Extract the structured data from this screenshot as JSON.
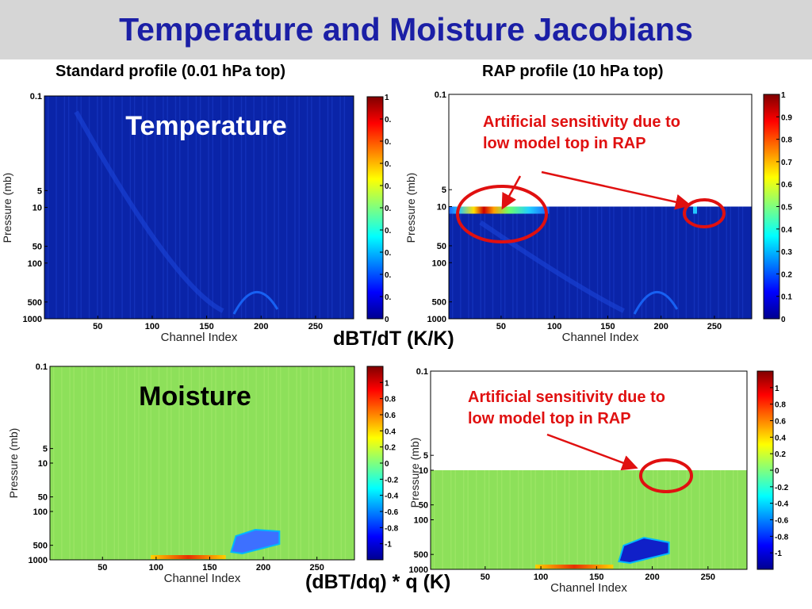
{
  "slide": {
    "title": "Temperature and Moisture Jacobians",
    "col_left": "Standard profile (0.01 hPa top)",
    "col_right": "RAP profile (10 hPa top)",
    "unit_temperature": "dBT/dT (K/K)",
    "unit_moisture": "(dBT/dq) * q (K)"
  },
  "colors": {
    "title": "#1b1fa6",
    "banner": "#d6d6d6",
    "annotation": "#e01010",
    "temp_bg": "#0a24a8",
    "moist_bg": "#8de05a"
  },
  "chart_data": [
    {
      "type": "heatmap",
      "name": "temp-standard",
      "label": "Temperature",
      "xlabel": "Channel Index",
      "ylabel": "Pressure (mb)",
      "xticks": [
        "50",
        "100",
        "150",
        "200",
        "250"
      ],
      "xlim": [
        1,
        285
      ],
      "yticks": [
        "0.1",
        "5",
        "10",
        "50",
        "100",
        "500",
        "1000"
      ],
      "yscale": "log",
      "ylim": [
        0.1,
        1000
      ],
      "colorbar_ticks": [
        "1",
        "0.",
        "0.",
        "0.",
        "0.",
        "0.",
        "0.",
        "0.",
        "0.",
        "0.",
        "0"
      ],
      "colorbar_range": [
        0,
        1
      ],
      "model_top_hpa": 0.01
    },
    {
      "type": "heatmap",
      "name": "temp-rap",
      "xlabel": "Channel Index",
      "ylabel": "Pressure (mb)",
      "xticks": [
        "50",
        "100",
        "150",
        "200",
        "250"
      ],
      "xlim": [
        1,
        285
      ],
      "yticks": [
        "0.1",
        "5",
        "10",
        "50",
        "100",
        "500",
        "1000"
      ],
      "yscale": "log",
      "ylim": [
        0.1,
        1000
      ],
      "colorbar_ticks": [
        "1",
        "0.9",
        "0.8",
        "0.7",
        "0.6",
        "0.5",
        "0.4",
        "0.3",
        "0.2",
        "0.1",
        "0"
      ],
      "colorbar_range": [
        0,
        1
      ],
      "model_top_hpa": 10,
      "annotation": "Artificial sensitivity due to\nlow model top in RAP"
    },
    {
      "type": "heatmap",
      "name": "moist-standard",
      "label": "Moisture",
      "xlabel": "Channel Index",
      "ylabel": "Pressure (mb)",
      "xticks": [
        "50",
        "100",
        "150",
        "200",
        "250"
      ],
      "xlim": [
        1,
        285
      ],
      "yticks": [
        "0.1",
        "5",
        "10",
        "50",
        "100",
        "500",
        "1000"
      ],
      "yscale": "log",
      "ylim": [
        0.1,
        1000
      ],
      "colorbar_ticks": [
        "1",
        "0.8",
        "0.6",
        "0.4",
        "0.2",
        "0",
        "-0.2",
        "-0.4",
        "-0.6",
        "-0.8",
        "-1"
      ],
      "colorbar_range": [
        -1.2,
        1.2
      ],
      "model_top_hpa": 0.01
    },
    {
      "type": "heatmap",
      "name": "moist-rap",
      "xlabel": "Channel Index",
      "ylabel": "Pressure (mb)",
      "xticks": [
        "50",
        "100",
        "150",
        "200",
        "250"
      ],
      "xlim": [
        1,
        285
      ],
      "yticks": [
        "0.1",
        "5",
        "10",
        "50",
        "100",
        "500",
        "1000"
      ],
      "yscale": "log",
      "ylim": [
        0.1,
        1000
      ],
      "colorbar_ticks": [
        "1",
        "0.8",
        "0.6",
        "0.4",
        "0.2",
        "0",
        "-0.2",
        "-0.4",
        "-0.6",
        "-0.8",
        "-1"
      ],
      "colorbar_range": [
        -1.2,
        1.2
      ],
      "model_top_hpa": 10,
      "annotation": "Artificial sensitivity due to\nlow model top in RAP"
    }
  ]
}
